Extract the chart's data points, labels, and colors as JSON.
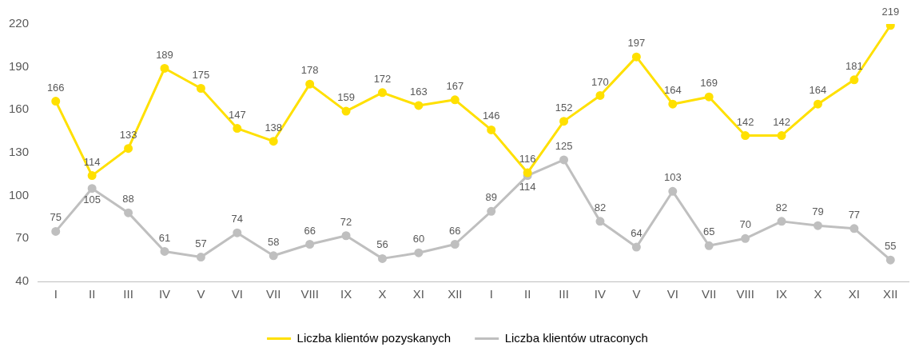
{
  "chart_data": {
    "type": "line",
    "categories": [
      "I",
      "II",
      "III",
      "IV",
      "V",
      "VI",
      "VII",
      "VIII",
      "IX",
      "X",
      "XI",
      "XII",
      "I",
      "II",
      "III",
      "IV",
      "V",
      "VI",
      "VII",
      "VIII",
      "IX",
      "X",
      "XI",
      "XII"
    ],
    "series": [
      {
        "name": "Liczba klientów pozyskanych",
        "color": "#ffe000",
        "values": [
          166,
          114,
          133,
          189,
          175,
          147,
          138,
          178,
          159,
          172,
          163,
          167,
          146,
          116,
          152,
          170,
          197,
          164,
          169,
          142,
          142,
          164,
          181,
          219
        ]
      },
      {
        "name": "Liczba klientów utraconych",
        "color": "#bfbfbf",
        "values": [
          75,
          105,
          88,
          61,
          57,
          74,
          58,
          66,
          72,
          56,
          60,
          66,
          89,
          114,
          125,
          82,
          64,
          103,
          65,
          70,
          82,
          79,
          77,
          55
        ]
      }
    ],
    "ylim": [
      40,
      220
    ],
    "yticks": [
      40,
      70,
      100,
      130,
      160,
      190,
      220
    ],
    "grid": false,
    "legend": "bottom",
    "marker": "circle",
    "line_style": "solid",
    "data_labels": true
  }
}
